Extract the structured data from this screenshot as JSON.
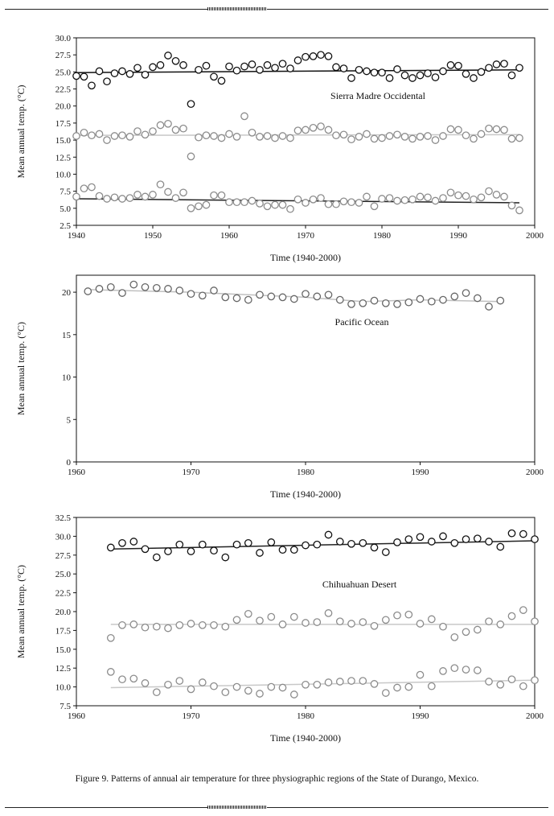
{
  "caption": "Figure 9. Patterns of annual air temperature for three physiographic regions of the State of Durango, Mexico.",
  "chart_data": [
    {
      "type": "scatter",
      "title": "Sierra Madre Occidental",
      "xlabel": "Time (1940-2000)",
      "ylabel": "Mean annual temp. (°C)",
      "xlim": [
        1940,
        2000
      ],
      "ylim": [
        2.5,
        30.0
      ],
      "xticks": [
        "1940",
        "1950",
        "1960",
        "1970",
        "1980",
        "1990",
        "2000"
      ],
      "yticks": [
        "2.5",
        "5.0",
        "7.5",
        "10.0",
        "12.5",
        "15.0",
        "17.5",
        "20.0",
        "22.5",
        "25.0",
        "27.5",
        "30.0"
      ],
      "grid": false,
      "series": [
        {
          "color": "#111111",
          "x": [
            1940,
            1941,
            1942,
            1943,
            1944,
            1945,
            1946,
            1947,
            1948,
            1949,
            1950,
            1951,
            1952,
            1953,
            1954,
            1955,
            1956,
            1957,
            1958,
            1959,
            1960,
            1961,
            1962,
            1963,
            1964,
            1965,
            1966,
            1967,
            1968,
            1969,
            1970,
            1971,
            1972,
            1973,
            1974,
            1975,
            1976,
            1977,
            1978,
            1979,
            1980,
            1981,
            1982,
            1983,
            1984,
            1985,
            1986,
            1987,
            1988,
            1989,
            1990,
            1991,
            1992,
            1993,
            1994,
            1995,
            1996,
            1997,
            1998
          ],
          "y": [
            24.4,
            24.3,
            23.0,
            25.1,
            23.6,
            24.8,
            25.1,
            24.7,
            25.6,
            24.6,
            25.7,
            26.0,
            27.4,
            26.6,
            26.0,
            20.3,
            25.3,
            25.9,
            24.3,
            23.7,
            25.8,
            25.2,
            25.8,
            26.1,
            25.3,
            26.0,
            25.6,
            26.2,
            25.5,
            26.7,
            27.2,
            27.3,
            27.5,
            27.3,
            25.7,
            25.5,
            24.1,
            25.3,
            25.1,
            24.9,
            24.9,
            24.1,
            25.4,
            24.5,
            24.1,
            24.5,
            24.8,
            24.2,
            25.1,
            26.0,
            25.9,
            24.7,
            24.1,
            25.0,
            25.6,
            26.1,
            26.2,
            24.5,
            25.6
          ],
          "trend": [
            [
              1940,
              24.9
            ],
            [
              1998,
              25.3
            ]
          ],
          "trend_color": "#111111"
        },
        {
          "color": "#8c8c8c",
          "x": [
            1940,
            1941,
            1942,
            1943,
            1944,
            1945,
            1946,
            1947,
            1948,
            1949,
            1950,
            1951,
            1952,
            1953,
            1954,
            1955,
            1956,
            1957,
            1958,
            1959,
            1960,
            1961,
            1962,
            1963,
            1964,
            1965,
            1966,
            1967,
            1968,
            1969,
            1970,
            1971,
            1972,
            1973,
            1974,
            1975,
            1976,
            1977,
            1978,
            1979,
            1980,
            1981,
            1982,
            1983,
            1984,
            1985,
            1986,
            1987,
            1988,
            1989,
            1990,
            1991,
            1992,
            1993,
            1994,
            1995,
            1996,
            1997,
            1998
          ],
          "y": [
            15.6,
            16.1,
            15.7,
            15.9,
            15.0,
            15.6,
            15.7,
            15.5,
            16.3,
            15.8,
            16.3,
            17.2,
            17.4,
            16.5,
            16.7,
            12.6,
            15.4,
            15.7,
            15.6,
            15.3,
            15.9,
            15.5,
            18.5,
            16.1,
            15.5,
            15.6,
            15.3,
            15.6,
            15.3,
            16.4,
            16.5,
            16.8,
            17.0,
            16.5,
            15.7,
            15.8,
            15.1,
            15.5,
            15.9,
            15.2,
            15.3,
            15.6,
            15.8,
            15.5,
            15.2,
            15.5,
            15.6,
            15.0,
            15.6,
            16.6,
            16.5,
            15.7,
            15.2,
            15.9,
            16.7,
            16.6,
            16.5,
            15.2,
            15.3
          ],
          "trend": [
            [
              1940,
              15.7
            ],
            [
              1998,
              15.8
            ]
          ],
          "trend_color": "#c8c8c8"
        },
        {
          "color": "#8c8c8c",
          "x": [
            1940,
            1941,
            1942,
            1943,
            1944,
            1945,
            1946,
            1947,
            1948,
            1949,
            1950,
            1951,
            1952,
            1953,
            1954,
            1955,
            1956,
            1957,
            1958,
            1959,
            1960,
            1961,
            1962,
            1963,
            1964,
            1965,
            1966,
            1967,
            1968,
            1969,
            1970,
            1971,
            1972,
            1973,
            1974,
            1975,
            1976,
            1977,
            1978,
            1979,
            1980,
            1981,
            1982,
            1983,
            1984,
            1985,
            1986,
            1987,
            1988,
            1989,
            1990,
            1991,
            1992,
            1993,
            1994,
            1995,
            1996,
            1997,
            1998
          ],
          "y": [
            6.7,
            7.9,
            8.1,
            6.8,
            6.4,
            6.6,
            6.4,
            6.5,
            7.0,
            6.7,
            7.0,
            8.5,
            7.4,
            6.5,
            7.3,
            5.0,
            5.3,
            5.5,
            6.9,
            6.9,
            5.9,
            5.9,
            5.9,
            6.1,
            5.7,
            5.3,
            5.5,
            5.5,
            4.9,
            6.3,
            5.8,
            6.3,
            6.5,
            5.6,
            5.6,
            6.0,
            5.9,
            5.8,
            6.7,
            5.3,
            6.4,
            6.5,
            6.1,
            6.2,
            6.3,
            6.7,
            6.6,
            6.1,
            6.5,
            7.3,
            6.9,
            6.8,
            6.3,
            6.6,
            7.5,
            7.0,
            6.7,
            5.4,
            4.7
          ],
          "trend": [
            [
              1940,
              6.4
            ],
            [
              1998,
              5.8
            ]
          ],
          "trend_color": "#222222"
        }
      ]
    },
    {
      "type": "scatter",
      "title": "Pacific Ocean",
      "xlabel": "Time (1940-2000)",
      "ylabel": "Mean annual temp. (°C)",
      "xlim": [
        1960,
        2000
      ],
      "ylim": [
        0,
        22
      ],
      "xticks": [
        "1960",
        "1970",
        "1980",
        "1990",
        "2000"
      ],
      "yticks": [
        "0",
        "5",
        "10",
        "15",
        "20"
      ],
      "grid": false,
      "series": [
        {
          "color": "#666666",
          "x": [
            1961,
            1962,
            1963,
            1964,
            1965,
            1966,
            1967,
            1968,
            1969,
            1970,
            1971,
            1972,
            1973,
            1974,
            1975,
            1976,
            1977,
            1978,
            1979,
            1980,
            1981,
            1982,
            1983,
            1984,
            1985,
            1986,
            1987,
            1988,
            1989,
            1990,
            1991,
            1992,
            1993,
            1994,
            1995,
            1996,
            1997
          ],
          "y": [
            20.1,
            20.4,
            20.6,
            19.9,
            20.9,
            20.6,
            20.5,
            20.4,
            20.2,
            19.8,
            19.6,
            20.2,
            19.4,
            19.3,
            19.1,
            19.7,
            19.5,
            19.4,
            19.2,
            19.8,
            19.5,
            19.7,
            19.1,
            18.6,
            18.7,
            19.0,
            18.7,
            18.6,
            18.8,
            19.2,
            18.9,
            19.1,
            19.5,
            19.9,
            19.3,
            18.3,
            19.0
          ],
          "trend": [
            [
              1961,
              20.3
            ],
            [
              1970,
              20.0
            ],
            [
              1980,
              19.4
            ],
            [
              1985,
              18.9
            ],
            [
              1990,
              19.1
            ],
            [
              1997,
              18.9
            ]
          ],
          "trend_color": "#c0c0c0"
        }
      ]
    },
    {
      "type": "scatter",
      "title": "Chihuahuan Desert",
      "xlabel": "Time (1940-2000)",
      "ylabel": "Mean annual temp. (°C)",
      "xlim": [
        1960,
        2000
      ],
      "ylim": [
        7.5,
        32.5
      ],
      "xticks": [
        "1960",
        "1970",
        "1980",
        "1990",
        "2000"
      ],
      "yticks": [
        "7.5",
        "10.0",
        "12.5",
        "15.0",
        "17.5",
        "20.0",
        "22.5",
        "25.0",
        "27.5",
        "30.0",
        "32.5"
      ],
      "grid": false,
      "series": [
        {
          "color": "#111111",
          "x": [
            1963,
            1964,
            1965,
            1966,
            1967,
            1968,
            1969,
            1970,
            1971,
            1972,
            1973,
            1974,
            1975,
            1976,
            1977,
            1978,
            1979,
            1980,
            1981,
            1982,
            1983,
            1984,
            1985,
            1986,
            1987,
            1988,
            1989,
            1990,
            1991,
            1992,
            1993,
            1994,
            1995,
            1996,
            1997,
            1998,
            1999,
            2000
          ],
          "y": [
            28.5,
            29.1,
            29.3,
            28.3,
            27.2,
            28.0,
            28.9,
            28.0,
            28.9,
            28.1,
            27.2,
            28.9,
            29.1,
            27.8,
            29.2,
            28.2,
            28.2,
            28.8,
            28.9,
            30.2,
            29.3,
            29.0,
            29.1,
            28.5,
            27.9,
            29.2,
            29.6,
            29.9,
            29.3,
            30.0,
            29.1,
            29.6,
            29.7,
            29.3,
            28.6,
            30.4,
            30.3,
            29.6
          ],
          "trend": [
            [
              1963,
              28.3
            ],
            [
              2000,
              29.4
            ]
          ],
          "trend_color": "#222222"
        },
        {
          "color": "#8c8c8c",
          "x": [
            1963,
            1964,
            1965,
            1966,
            1967,
            1968,
            1969,
            1970,
            1971,
            1972,
            1973,
            1974,
            1975,
            1976,
            1977,
            1978,
            1979,
            1980,
            1981,
            1982,
            1983,
            1984,
            1985,
            1986,
            1987,
            1988,
            1989,
            1990,
            1991,
            1992,
            1993,
            1994,
            1995,
            1996,
            1997,
            1998,
            1999,
            2000
          ],
          "y": [
            16.5,
            18.2,
            18.3,
            17.9,
            18.0,
            17.8,
            18.2,
            18.4,
            18.2,
            18.2,
            18.0,
            18.9,
            19.7,
            18.8,
            19.3,
            18.3,
            19.3,
            18.5,
            18.6,
            19.8,
            18.7,
            18.4,
            18.6,
            18.1,
            18.9,
            19.5,
            19.6,
            18.4,
            19.0,
            18.0,
            16.6,
            17.3,
            17.6,
            18.7,
            18.3,
            19.4,
            20.2,
            18.7
          ],
          "trend": [
            [
              1963,
              18.3
            ],
            [
              2000,
              18.3
            ]
          ],
          "trend_color": "#c8c8c8"
        },
        {
          "color": "#8c8c8c",
          "x": [
            1963,
            1964,
            1965,
            1966,
            1967,
            1968,
            1969,
            1970,
            1971,
            1972,
            1973,
            1974,
            1975,
            1976,
            1977,
            1978,
            1979,
            1980,
            1981,
            1982,
            1983,
            1984,
            1985,
            1986,
            1987,
            1988,
            1989,
            1990,
            1991,
            1992,
            1993,
            1994,
            1995,
            1996,
            1997,
            1998,
            1999,
            2000
          ],
          "y": [
            12.0,
            11.0,
            11.1,
            10.5,
            9.3,
            10.3,
            10.8,
            9.7,
            10.6,
            10.1,
            9.3,
            10.0,
            9.5,
            9.1,
            10.0,
            9.9,
            9.0,
            10.3,
            10.3,
            10.6,
            10.7,
            10.8,
            10.8,
            10.4,
            9.2,
            9.9,
            10.0,
            11.6,
            10.1,
            12.1,
            12.5,
            12.3,
            12.2,
            10.7,
            10.3,
            11.0,
            10.1,
            10.9
          ],
          "trend": [
            [
              1963,
              9.9
            ],
            [
              2000,
              10.9
            ]
          ],
          "trend_color": "#c8c8c8"
        }
      ]
    }
  ]
}
